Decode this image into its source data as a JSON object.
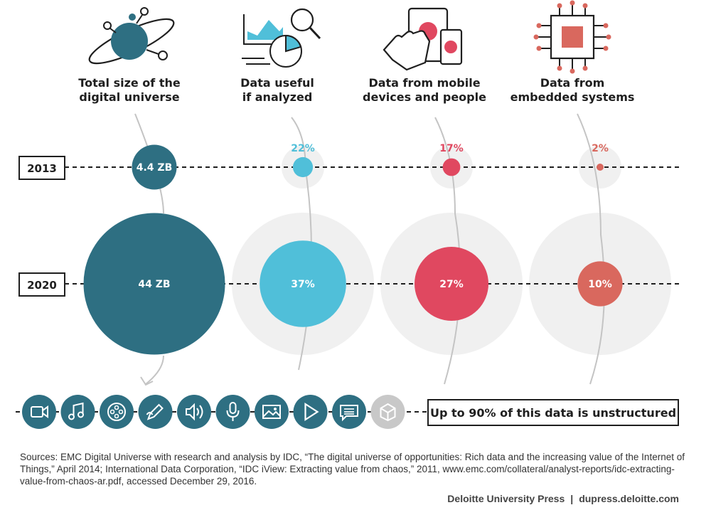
{
  "colors": {
    "teal": "#2e6f82",
    "light_blue": "#50bfd9",
    "pink": "#e04860",
    "salmon": "#d9685e",
    "ghost": "#f0f0f0",
    "gray_icon": "#c8c8c8"
  },
  "chart_data": {
    "type": "bubble",
    "years": [
      "2013",
      "2020"
    ],
    "columns": [
      {
        "title": [
          "Total size of the",
          "digital universe"
        ],
        "icon": "digital-universe-icon",
        "values": {
          "2013": 4.4,
          "2020": 44
        },
        "labels": {
          "2013": "4.4 ZB",
          "2020": "44 ZB"
        },
        "unit": "ZB",
        "color": "#2e6f82"
      },
      {
        "title": [
          "Data useful",
          "if analyzed"
        ],
        "icon": "analytics-icon",
        "values": {
          "2013": 22,
          "2020": 37
        },
        "labels": {
          "2013": "22%",
          "2020": "37%"
        },
        "unit": "%",
        "color": "#50bfd9"
      },
      {
        "title": [
          "Data from mobile",
          "devices and people"
        ],
        "icon": "mobile-devices-icon",
        "values": {
          "2013": 17,
          "2020": 27
        },
        "labels": {
          "2013": "17%",
          "2020": "27%"
        },
        "unit": "%",
        "color": "#e04860"
      },
      {
        "title": [
          "Data from",
          "embedded systems"
        ],
        "icon": "embedded-chip-icon",
        "values": {
          "2013": 2,
          "2020": 10
        },
        "labels": {
          "2013": "2%",
          "2020": "10%"
        },
        "unit": "%",
        "color": "#d9685e"
      }
    ]
  },
  "data_types": [
    "video-icon",
    "music-icon",
    "film-reel-icon",
    "pen-icon",
    "speaker-icon",
    "microphone-icon",
    "image-icon",
    "play-icon",
    "chat-icon",
    "cube-icon"
  ],
  "callout": "Up to 90% of this data is unstructured",
  "sources": "Sources: EMC Digital Universe with research and analysis by IDC, “The digital universe of opportunities: Rich data and the increasing value of the Internet of Things,” April 2014; International Data Corporation, “IDC iView: Extracting value from chaos,” 2011, www.emc.com/collateral/analyst-reports/idc-extracting-value-from-chaos-ar.pdf, accessed December 29, 2016.",
  "credit": {
    "publisher": "Deloitte University Press",
    "separator": "|",
    "site": "dupress.deloitte.com"
  }
}
